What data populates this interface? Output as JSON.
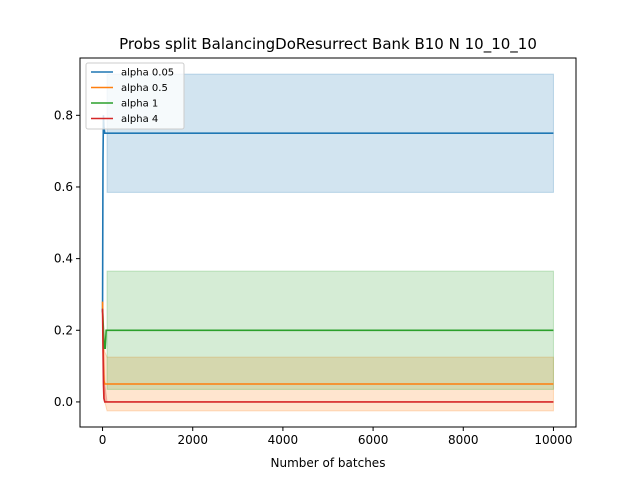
{
  "chart_data": {
    "type": "line",
    "title": "Probs split BalancingDoResurrect Bank B10 N 10_10_10",
    "xlabel": "Number of batches",
    "ylabel": "",
    "xlim": [
      -500,
      10500
    ],
    "ylim": [
      -0.07,
      0.96
    ],
    "xticks": [
      0,
      2000,
      4000,
      6000,
      8000,
      10000
    ],
    "yticks": [
      0.0,
      0.2,
      0.4,
      0.6,
      0.8
    ],
    "xtick_labels": [
      "0",
      "2000",
      "4000",
      "6000",
      "8000",
      "10000"
    ],
    "ytick_labels": [
      "0.0",
      "0.2",
      "0.4",
      "0.6",
      "0.8"
    ],
    "grid": false,
    "legend_position": "top-left",
    "series": [
      {
        "name": "alpha 0.05",
        "color": "#1f77b4",
        "x": [
          0,
          10,
          20,
          30,
          50,
          100,
          10000
        ],
        "y": [
          0.25,
          0.68,
          0.8,
          0.77,
          0.75,
          0.75,
          0.75
        ],
        "band": {
          "x": [
            100,
            10000
          ],
          "lower": [
            0.585,
            0.585
          ],
          "upper": [
            0.915,
            0.915
          ]
        }
      },
      {
        "name": "alpha 0.5",
        "color": "#ff7f0e",
        "x": [
          0,
          10,
          20,
          30,
          50,
          100,
          10000
        ],
        "y": [
          0.28,
          0.2,
          0.1,
          0.06,
          0.05,
          0.05,
          0.05
        ],
        "band": {
          "x": [
            0,
            50,
            100,
            10000
          ],
          "lower": [
            0.22,
            0.0,
            -0.025,
            -0.025
          ],
          "upper": [
            0.29,
            0.14,
            0.125,
            0.125
          ]
        }
      },
      {
        "name": "alpha 1",
        "color": "#2ca02c",
        "x": [
          0,
          20,
          40,
          60,
          80,
          100,
          10000
        ],
        "y": [
          0.26,
          0.2,
          0.15,
          0.15,
          0.2,
          0.2,
          0.2
        ],
        "band": {
          "x": [
            100,
            10000
          ],
          "lower": [
            0.035,
            0.035
          ],
          "upper": [
            0.365,
            0.365
          ]
        }
      },
      {
        "name": "alpha 4",
        "color": "#d62728",
        "x": [
          0,
          10,
          20,
          30,
          50,
          100,
          10000
        ],
        "y": [
          0.26,
          0.15,
          0.05,
          0.01,
          0.0,
          0.0,
          0.0
        ],
        "band": {
          "x": [
            0,
            50,
            100,
            10000
          ],
          "lower": [
            0.2,
            0.0,
            0.0,
            0.0
          ],
          "upper": [
            0.27,
            0.05,
            0.0,
            0.0
          ]
        }
      }
    ]
  }
}
